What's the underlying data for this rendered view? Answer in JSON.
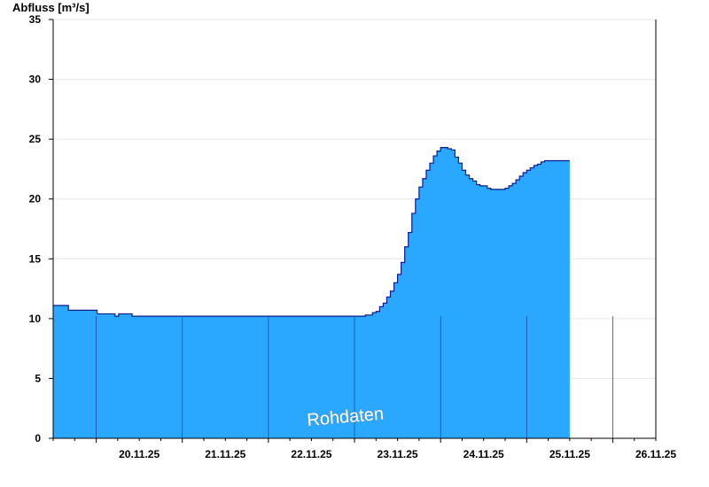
{
  "colors": {
    "area_fill": "#2aa8ff",
    "area_line": "#0a1a8c",
    "day_divider": "#1a4f9c",
    "grid": "#e6e6e6",
    "axis": "#000000",
    "watermark_text": "#ffffff"
  },
  "watermark": "Rohdaten",
  "chart_data": {
    "type": "area",
    "title": "",
    "ylabel": "Abfluss [m³/s]",
    "xlabel": "",
    "ylim": [
      0,
      35
    ],
    "xlim": [
      "2025-11-19T12:00",
      "2025-11-26T12:00"
    ],
    "yticks": [
      0,
      5,
      10,
      15,
      20,
      25,
      30,
      35
    ],
    "grid": true,
    "legend": "none",
    "xtick_labels": [
      "20.11.25",
      "21.11.25",
      "22.11.25",
      "23.11.25",
      "24.11.25",
      "25.11.25",
      "26.11.25"
    ],
    "day_dividers": [
      "2025-11-20T00:00",
      "2025-11-21T00:00",
      "2025-11-22T00:00",
      "2025-11-23T00:00",
      "2025-11-24T00:00",
      "2025-11-25T00:00",
      "2025-11-26T00:00"
    ],
    "series": [
      {
        "name": "",
        "x": [
          "2025-11-19T12:00",
          "2025-11-19T16:00",
          "2025-11-19T16:15",
          "2025-11-20T00:00",
          "2025-11-20T00:15",
          "2025-11-20T05:00",
          "2025-11-20T05:15",
          "2025-11-20T06:00",
          "2025-11-20T06:15",
          "2025-11-20T10:00",
          "2025-11-20T12:00",
          "2025-11-23T00:00",
          "2025-11-23T02:00",
          "2025-11-23T03:00",
          "2025-11-23T04:00",
          "2025-11-23T05:00",
          "2025-11-23T06:00",
          "2025-11-23T07:00",
          "2025-11-23T08:00",
          "2025-11-23T09:00",
          "2025-11-23T10:00",
          "2025-11-23T11:00",
          "2025-11-23T12:00",
          "2025-11-23T13:00",
          "2025-11-23T14:00",
          "2025-11-23T15:00",
          "2025-11-23T16:00",
          "2025-11-23T17:00",
          "2025-11-23T18:00",
          "2025-11-23T19:00",
          "2025-11-23T20:00",
          "2025-11-23T21:00",
          "2025-11-23T22:00",
          "2025-11-23T23:00",
          "2025-11-24T00:00",
          "2025-11-24T01:00",
          "2025-11-24T02:00",
          "2025-11-24T03:00",
          "2025-11-24T04:00",
          "2025-11-24T05:00",
          "2025-11-24T06:00",
          "2025-11-24T07:00",
          "2025-11-24T08:00",
          "2025-11-24T09:00",
          "2025-11-24T10:00",
          "2025-11-24T11:00",
          "2025-11-24T12:00",
          "2025-11-24T13:00",
          "2025-11-24T14:00",
          "2025-11-24T15:00",
          "2025-11-24T16:00",
          "2025-11-24T17:00",
          "2025-11-24T18:00",
          "2025-11-24T19:00",
          "2025-11-24T20:00",
          "2025-11-24T21:00",
          "2025-11-24T22:00",
          "2025-11-24T23:00",
          "2025-11-25T00:00",
          "2025-11-25T01:00",
          "2025-11-25T02:00",
          "2025-11-25T03:00",
          "2025-11-25T04:00",
          "2025-11-25T05:00",
          "2025-11-25T06:00",
          "2025-11-25T07:00",
          "2025-11-25T08:00",
          "2025-11-25T09:00",
          "2025-11-25T10:00",
          "2025-11-25T11:00",
          "2025-11-25T12:00"
        ],
        "values": [
          11.1,
          11.1,
          10.7,
          10.7,
          10.4,
          10.4,
          10.2,
          10.2,
          10.4,
          10.2,
          10.2,
          10.2,
          10.2,
          10.3,
          10.3,
          10.5,
          10.6,
          11.0,
          11.3,
          11.8,
          12.3,
          13.0,
          13.7,
          14.7,
          16.0,
          17.2,
          18.8,
          20.0,
          21.0,
          21.7,
          22.4,
          23.0,
          23.6,
          24.0,
          24.3,
          24.3,
          24.2,
          24.1,
          23.5,
          23.0,
          22.4,
          22.0,
          21.7,
          21.5,
          21.2,
          21.1,
          21.1,
          20.9,
          20.8,
          20.8,
          20.8,
          20.8,
          20.9,
          21.1,
          21.3,
          21.6,
          21.9,
          22.2,
          22.4,
          22.6,
          22.8,
          22.9,
          23.1,
          23.2,
          23.2,
          23.2,
          23.2,
          23.2,
          23.2,
          23.2,
          23.2
        ]
      }
    ]
  }
}
